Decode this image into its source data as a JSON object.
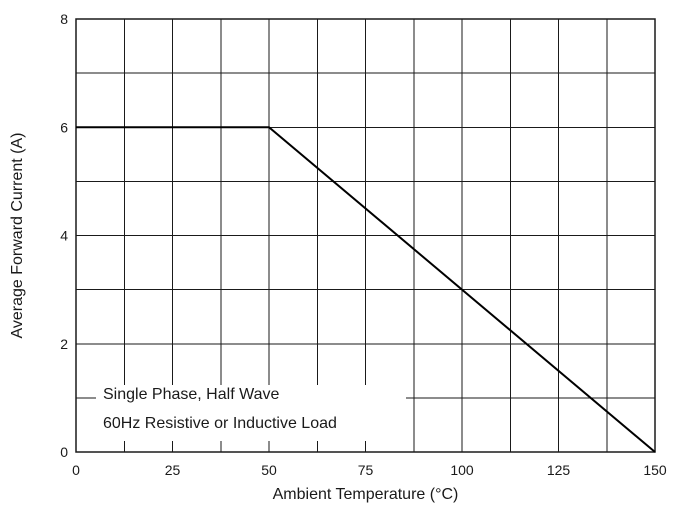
{
  "chart_data": {
    "type": "line",
    "xlabel": "Ambient Temperature (°C)",
    "ylabel": "Average Forward Current (A)",
    "xlim": [
      0,
      150
    ],
    "ylim": [
      0,
      8
    ],
    "x_ticks": [
      "0",
      "25",
      "50",
      "75",
      "100",
      "125",
      "150"
    ],
    "y_ticks": [
      "0",
      "2",
      "4",
      "6",
      "8"
    ],
    "x_tick_values": [
      0,
      25,
      50,
      75,
      100,
      125,
      150
    ],
    "y_tick_values": [
      0,
      2,
      4,
      6,
      8
    ],
    "x_gridlines": [
      0,
      12.5,
      25,
      37.5,
      50,
      62.5,
      75,
      87.5,
      100,
      112.5,
      125,
      137.5,
      150
    ],
    "y_gridlines": [
      0,
      1,
      2,
      3,
      4,
      5,
      6,
      7,
      8
    ],
    "grid": true,
    "series": [
      {
        "x": [
          0,
          50,
          150
        ],
        "y": [
          6,
          6,
          0
        ],
        "color": "#000000"
      }
    ],
    "annotation": {
      "lines": [
        "Single Phase, Half Wave",
        "60Hz Resistive or Inductive Load"
      ]
    },
    "colors": {
      "grid": "#1a1a1a",
      "line": "#000000",
      "text": "#1a1a1a",
      "background": "#ffffff"
    }
  }
}
